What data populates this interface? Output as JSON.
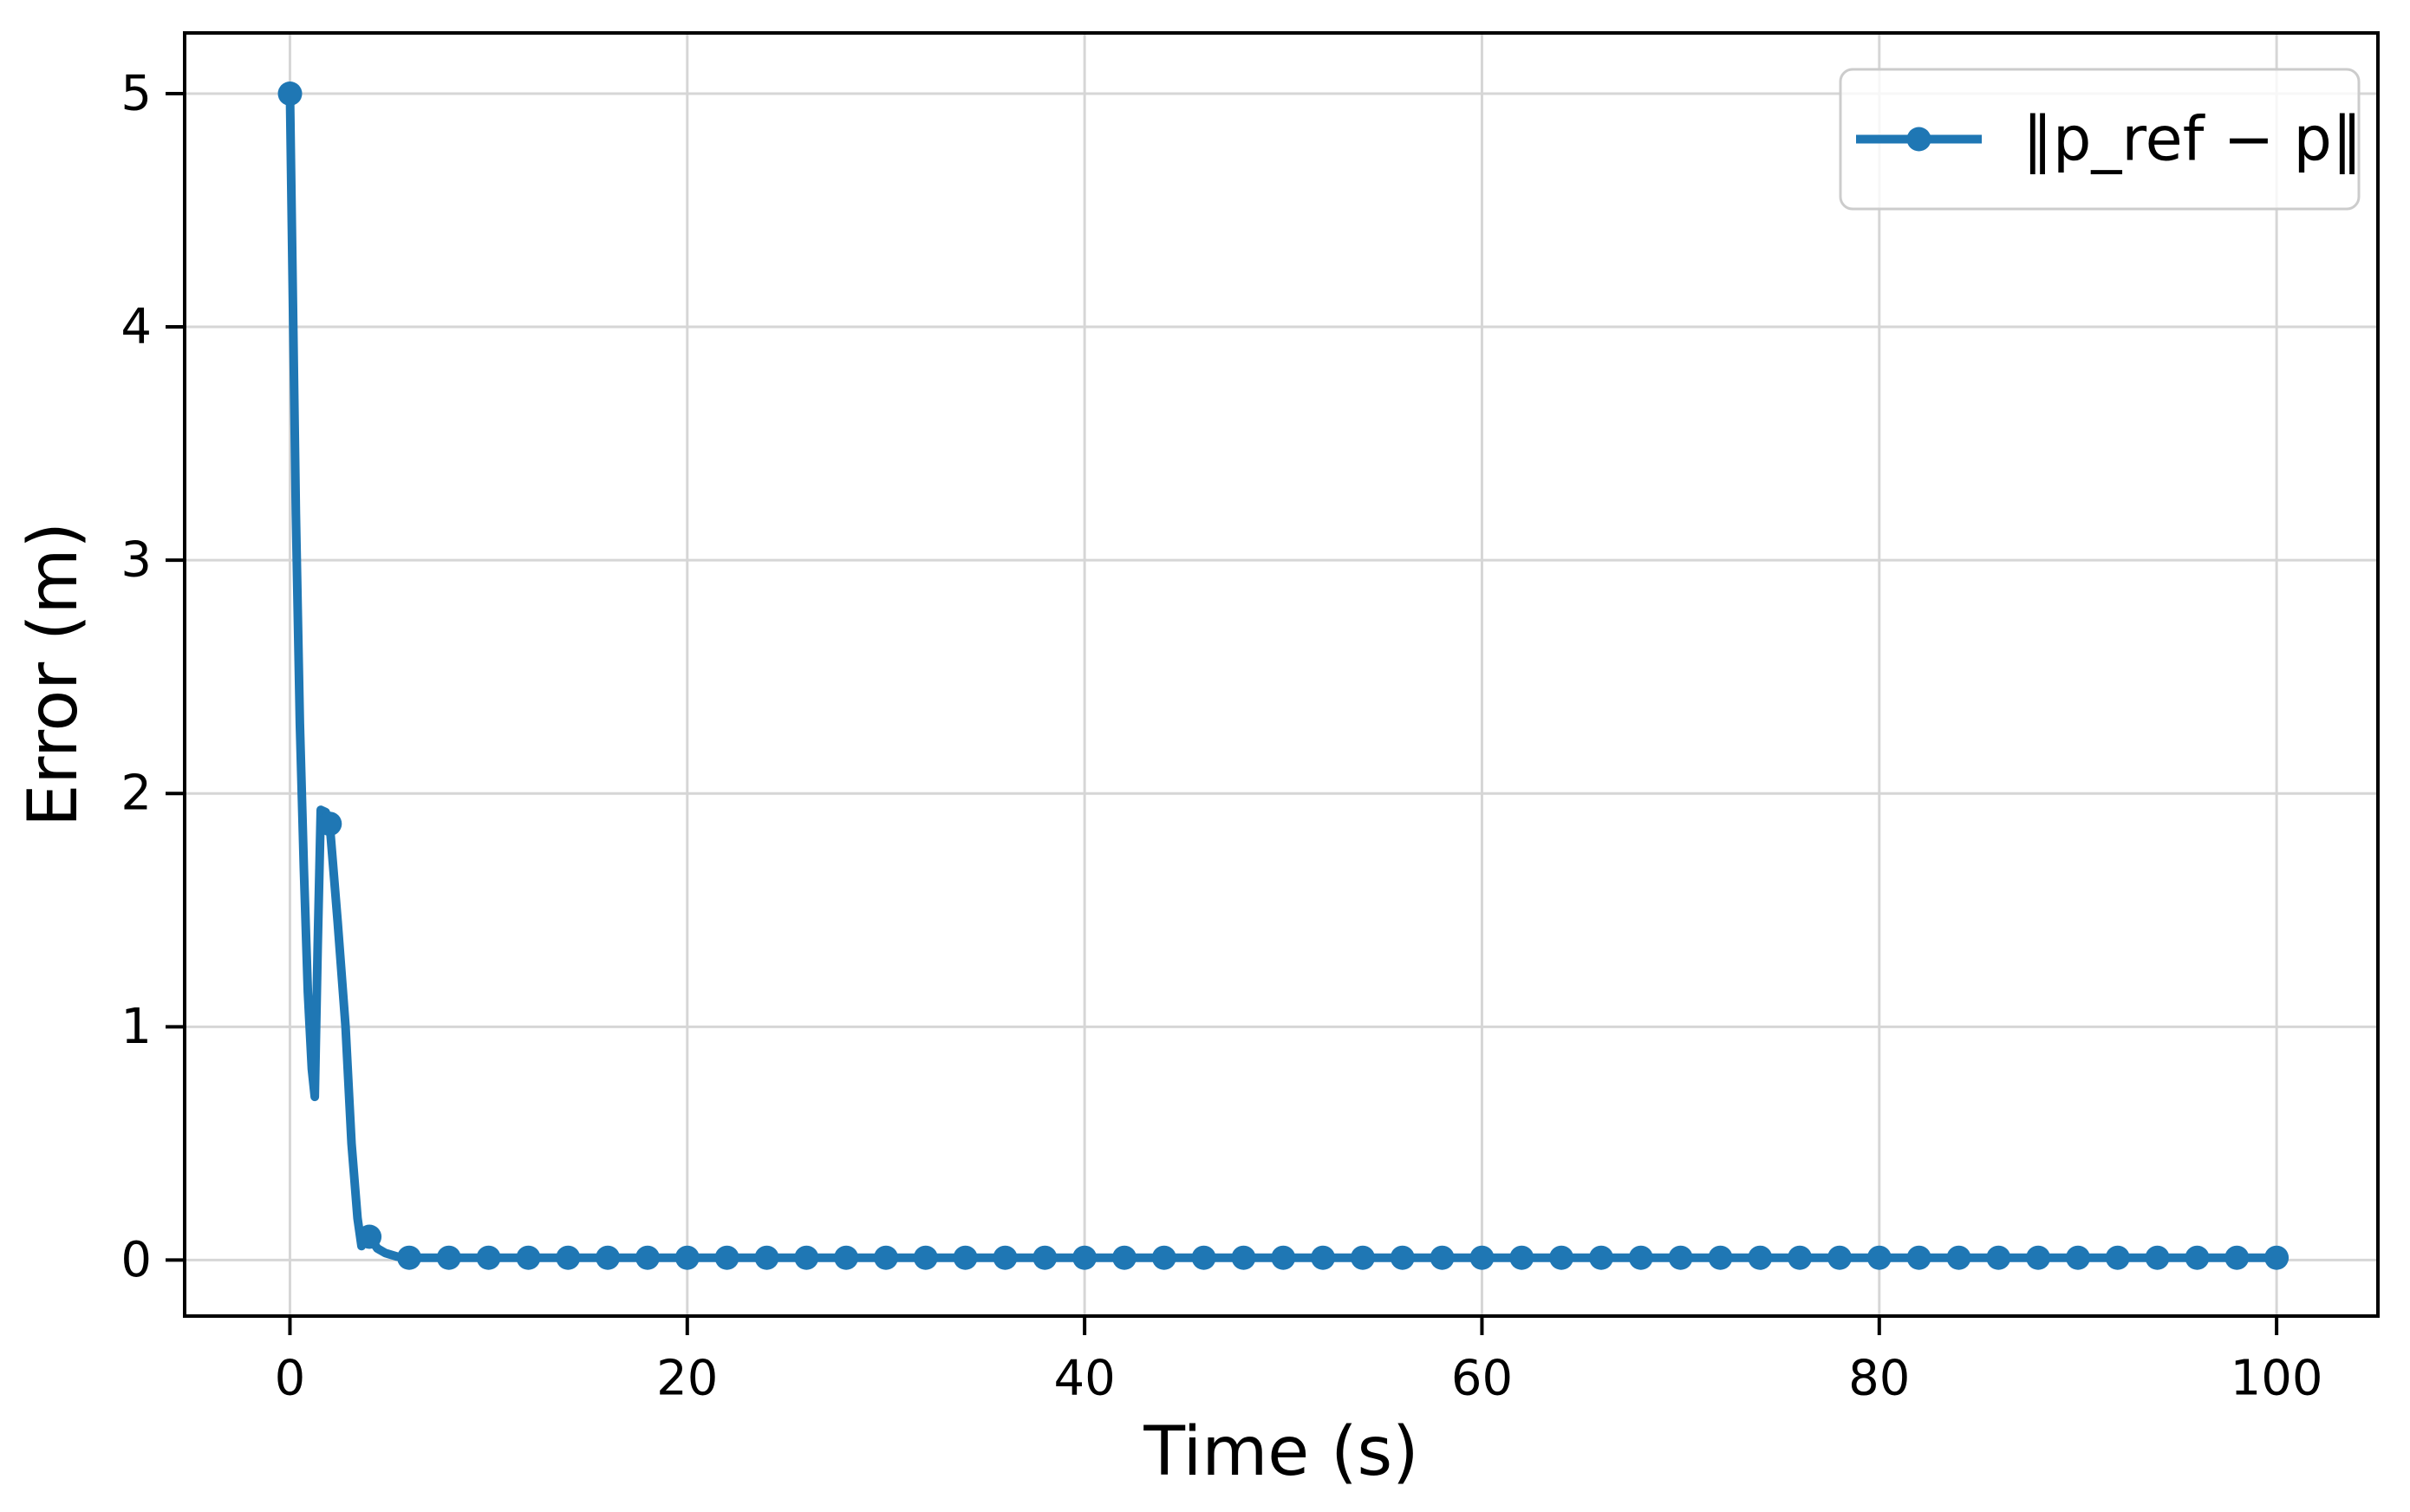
{
  "chart_data": {
    "type": "line",
    "title": "",
    "xlabel": "Time (s)",
    "ylabel": "Error (m)",
    "xlim": [
      -5.3,
      105.1
    ],
    "ylim": [
      -0.24,
      5.26
    ],
    "xticks": [
      0,
      20,
      40,
      60,
      80,
      100
    ],
    "yticks": [
      0,
      1,
      2,
      3,
      4,
      5
    ],
    "grid": true,
    "legend": {
      "label": "‖p_ref − p‖",
      "position": "upper-right"
    },
    "colors": {
      "line": "#1f77b4",
      "grid": "#d6d6d6",
      "spine": "#000000",
      "text": "#000000",
      "legend_border": "#cccccc",
      "background": "#ffffff"
    },
    "series": [
      {
        "name": "‖p_ref − p‖",
        "line": [
          [
            0,
            5.0
          ],
          [
            0.15,
            4.1
          ],
          [
            0.3,
            3.2
          ],
          [
            0.5,
            2.3
          ],
          [
            0.7,
            1.68
          ],
          [
            0.9,
            1.15
          ],
          [
            1.1,
            0.82
          ],
          [
            1.25,
            0.7
          ],
          [
            1.4,
            1.35
          ],
          [
            1.55,
            1.93
          ],
          [
            1.8,
            1.92
          ],
          [
            2,
            1.87
          ],
          [
            2.4,
            1.45
          ],
          [
            2.8,
            1.0
          ],
          [
            3.1,
            0.5
          ],
          [
            3.4,
            0.18
          ],
          [
            3.6,
            0.06
          ],
          [
            3.9,
            0.115
          ],
          [
            4,
            0.1
          ],
          [
            4.4,
            0.05
          ],
          [
            4.8,
            0.03
          ],
          [
            5.4,
            0.015
          ],
          [
            6,
            0.01
          ],
          [
            8,
            0.01
          ],
          [
            10,
            0.01
          ],
          [
            12,
            0.01
          ],
          [
            14,
            0.01
          ],
          [
            16,
            0.01
          ],
          [
            18,
            0.01
          ],
          [
            20,
            0.01
          ],
          [
            22,
            0.01
          ],
          [
            24,
            0.01
          ],
          [
            26,
            0.01
          ],
          [
            28,
            0.01
          ],
          [
            30,
            0.01
          ],
          [
            32,
            0.01
          ],
          [
            34,
            0.01
          ],
          [
            36,
            0.01
          ],
          [
            38,
            0.01
          ],
          [
            40,
            0.01
          ],
          [
            42,
            0.01
          ],
          [
            44,
            0.01
          ],
          [
            46,
            0.01
          ],
          [
            48,
            0.01
          ],
          [
            50,
            0.01
          ],
          [
            52,
            0.01
          ],
          [
            54,
            0.01
          ],
          [
            56,
            0.01
          ],
          [
            58,
            0.01
          ],
          [
            60,
            0.01
          ],
          [
            62,
            0.01
          ],
          [
            64,
            0.01
          ],
          [
            66,
            0.01
          ],
          [
            68,
            0.01
          ],
          [
            70,
            0.01
          ],
          [
            72,
            0.01
          ],
          [
            74,
            0.01
          ],
          [
            76,
            0.01
          ],
          [
            78,
            0.01
          ],
          [
            80,
            0.01
          ],
          [
            82,
            0.01
          ],
          [
            84,
            0.01
          ],
          [
            86,
            0.01
          ],
          [
            88,
            0.01
          ],
          [
            90,
            0.01
          ],
          [
            92,
            0.01
          ],
          [
            94,
            0.01
          ],
          [
            96,
            0.01
          ],
          [
            98,
            0.01
          ],
          [
            100,
            0.01
          ]
        ],
        "markers": [
          [
            0,
            5.0
          ],
          [
            2,
            1.87
          ],
          [
            4,
            0.1
          ],
          [
            6,
            0.01
          ],
          [
            8,
            0.01
          ],
          [
            10,
            0.01
          ],
          [
            12,
            0.01
          ],
          [
            14,
            0.01
          ],
          [
            16,
            0.01
          ],
          [
            18,
            0.01
          ],
          [
            20,
            0.01
          ],
          [
            22,
            0.01
          ],
          [
            24,
            0.01
          ],
          [
            26,
            0.01
          ],
          [
            28,
            0.01
          ],
          [
            30,
            0.01
          ],
          [
            32,
            0.01
          ],
          [
            34,
            0.01
          ],
          [
            36,
            0.01
          ],
          [
            38,
            0.01
          ],
          [
            40,
            0.01
          ],
          [
            42,
            0.01
          ],
          [
            44,
            0.01
          ],
          [
            46,
            0.01
          ],
          [
            48,
            0.01
          ],
          [
            50,
            0.01
          ],
          [
            52,
            0.01
          ],
          [
            54,
            0.01
          ],
          [
            56,
            0.01
          ],
          [
            58,
            0.01
          ],
          [
            60,
            0.01
          ],
          [
            62,
            0.01
          ],
          [
            64,
            0.01
          ],
          [
            66,
            0.01
          ],
          [
            68,
            0.01
          ],
          [
            70,
            0.01
          ],
          [
            72,
            0.01
          ],
          [
            74,
            0.01
          ],
          [
            76,
            0.01
          ],
          [
            78,
            0.01
          ],
          [
            80,
            0.01
          ],
          [
            82,
            0.01
          ],
          [
            84,
            0.01
          ],
          [
            86,
            0.01
          ],
          [
            88,
            0.01
          ],
          [
            90,
            0.01
          ],
          [
            92,
            0.01
          ],
          [
            94,
            0.01
          ],
          [
            96,
            0.01
          ],
          [
            98,
            0.01
          ],
          [
            100,
            0.01
          ]
        ]
      }
    ]
  }
}
